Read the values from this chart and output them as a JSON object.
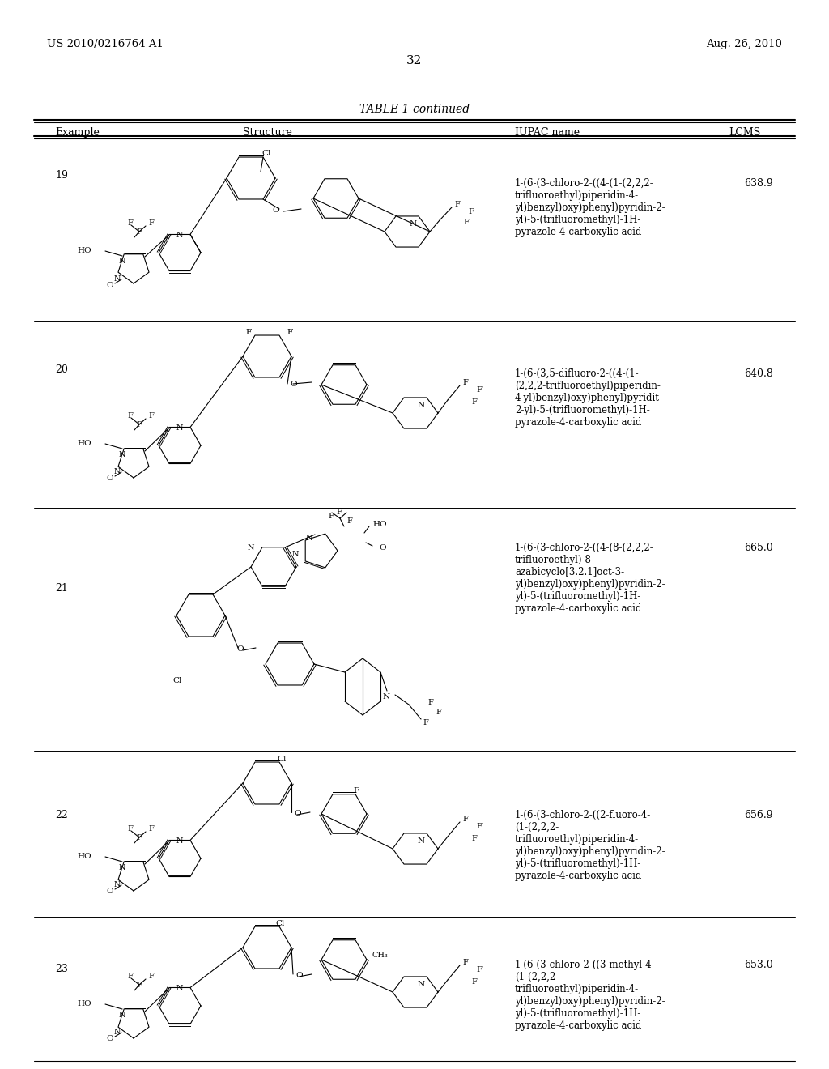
{
  "page_number": "32",
  "patent_number": "US 2010/0216764 A1",
  "patent_date": "Aug. 26, 2010",
  "table_title": "TABLE 1-continued",
  "col_headers": [
    "Example",
    "Structure",
    "IUPAC name",
    "LCMS"
  ],
  "bg_color": "#ffffff",
  "text_color": "#000000",
  "rows": [
    {
      "example": "19",
      "iupac": "1-(6-(3-chloro-2-((4-(1-(2,2,2-\ntrifluoroethyl)piperidin-4-\nyl)benzyl)oxy)phenyl)pyridin-2-\nyl)-5-(trifluoromethyl)-1H-\npyrazole-4-carboxylic acid",
      "lcms": "638.9"
    },
    {
      "example": "20",
      "iupac": "1-(6-(3,5-difluoro-2-((4-(1-\n(2,2,2-trifluoroethyl)piperidin-\n4-yl)benzyl)oxy)phenyl)pyridit-\n2-yl)-5-(trifluoromethyl)-1H-\npyrazole-4-carboxylic acid",
      "lcms": "640.8"
    },
    {
      "example": "21",
      "iupac": "1-(6-(3-chloro-2-((4-(8-(2,2,2-\ntrifluoroethyl)-8-\nazabicyclo[3.2.1]oct-3-\nyl)benzyl)oxy)phenyl)pyridin-2-\nyl)-5-(trifluoromethyl)-1H-\npyrazole-4-carboxylic acid",
      "lcms": "665.0"
    },
    {
      "example": "22",
      "iupac": "1-(6-(3-chloro-2-((2-fluoro-4-\n(1-(2,2,2-\ntrifluoroethyl)piperidin-4-\nyl)benzyl)oxy)phenyl)pyridin-2-\nyl)-5-(trifluoromethyl)-1H-\npyrazole-4-carboxylic acid",
      "lcms": "656.9"
    },
    {
      "example": "23",
      "iupac": "1-(6-(3-chloro-2-((3-methyl-4-\n(1-(2,2,2-\ntrifluoroethyl)piperidin-4-\nyl)benzyl)oxy)phenyl)pyridin-2-\nyl)-5-(trifluoromethyl)-1H-\npyrazole-4-carboxylic acid",
      "lcms": "653.0"
    }
  ]
}
